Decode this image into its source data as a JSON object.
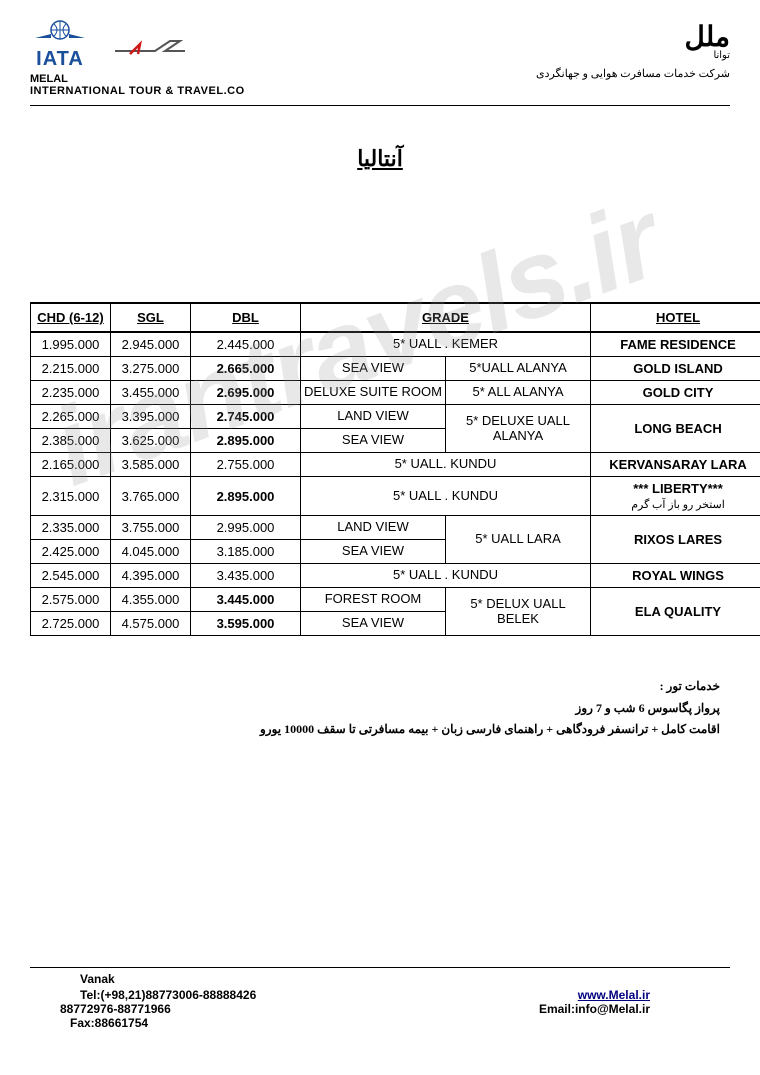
{
  "header": {
    "iata": "IATA",
    "melal": "MELAL",
    "company_en": "INTERNATIONAL TOUR & TRAVEL.CO",
    "brand_fa": "ملل",
    "brand_sub": "توانا",
    "company_fa": "شرکت خدمات مسافرت هوایی و جهانگردی"
  },
  "title": "آنتالیا",
  "watermark": "irantravels.ir",
  "table": {
    "headers": {
      "chd": "CHD (6-12)",
      "sgl": "SGL",
      "dbl": "DBL",
      "grade": "GRADE",
      "hotel": "HOTEL"
    },
    "rows": [
      {
        "chd": "1.995.000",
        "sgl": "2.945.000",
        "dbl": "2.445.000",
        "dbl_bold": false,
        "grade": "5* UALL . KEMER",
        "hotel": "FAME RESIDENCE",
        "hotel_large": false
      },
      {
        "chd": "2.215.000",
        "sgl": "3.275.000",
        "dbl": "2.665.000",
        "dbl_bold": true,
        "grade_sub1": "SEA VIEW",
        "grade_sub2": "5*UALL ALANYA",
        "hotel": "GOLD ISLAND",
        "hotel_large": true
      },
      {
        "chd": "2.235.000",
        "sgl": "3.455.000",
        "dbl": "2.695.000",
        "dbl_bold": true,
        "grade_sub1": "DELUXE SUITE ROOM",
        "grade_sub2": "5* ALL ALANYA",
        "hotel": "GOLD CITY",
        "hotel_large": true
      },
      {
        "chd": "2.265.000",
        "sgl": "3.395.000",
        "dbl": "2.745.000",
        "dbl_bold": true,
        "grade_sub1": "LAND VIEW",
        "grade_sub2": "5* DELUXE UALL ALANYA",
        "hotel": "LONG BEACH",
        "hotel_large": true,
        "rowspan_hotel": 2,
        "rowspan_sub2": 2
      },
      {
        "chd": "2.385.000",
        "sgl": "3.625.000",
        "dbl": "2.895.000",
        "dbl_bold": true,
        "grade_sub1": "SEA VIEW"
      },
      {
        "chd": "2.165.000",
        "sgl": "3.585.000",
        "dbl": "2.755.000",
        "dbl_bold": false,
        "grade": "5* UALL. KUNDU",
        "hotel": "KERVANSARAY LARA",
        "hotel_large": false
      },
      {
        "chd": "2.315.000",
        "sgl": "3.765.000",
        "dbl": "2.895.000",
        "dbl_bold": true,
        "grade": "5* UALL . KUNDU",
        "hotel": "*** LIBERTY***",
        "hotel_sub": "استخر رو باز آب گرم",
        "hotel_large": false
      },
      {
        "chd": "2.335.000",
        "sgl": "3.755.000",
        "dbl": "2.995.000",
        "dbl_bold": false,
        "grade_sub1": "LAND VIEW",
        "grade_sub2": "5* UALL LARA",
        "hotel": "RIXOS LARES",
        "hotel_large": false,
        "rowspan_hotel": 2,
        "rowspan_sub2": 2
      },
      {
        "chd": "2.425.000",
        "sgl": "4.045.000",
        "dbl": "3.185.000",
        "dbl_bold": false,
        "grade_sub1": "SEA VIEW"
      },
      {
        "chd": "2.545.000",
        "sgl": "4.395.000",
        "dbl": "3.435.000",
        "dbl_bold": false,
        "grade": "5* UALL . KUNDU",
        "hotel": "ROYAL WINGS",
        "hotel_large": false
      },
      {
        "chd": "2.575.000",
        "sgl": "4.355.000",
        "dbl": "3.445.000",
        "dbl_bold": true,
        "grade_sub1": "FOREST ROOM",
        "grade_sub2": "5* DELUX UALL BELEK",
        "hotel": "ELA QUALITY",
        "hotel_large": true,
        "rowspan_hotel": 2,
        "rowspan_sub2": 2
      },
      {
        "chd": "2.725.000",
        "sgl": "4.575.000",
        "dbl": "3.595.000",
        "dbl_bold": true,
        "grade_sub1": "SEA VIEW",
        "last": true
      }
    ]
  },
  "notes": {
    "l1": "خدمات تور :",
    "l2": "پرواز پگاسوس 6 شب و 7 روز",
    "l3": "اقامت کامل + ترانسفر فرودگاهی + راهنمای فارسی زبان + بیمه مسافرتی تا سقف 10000 یورو"
  },
  "footer": {
    "addr": "Vanak",
    "tel_label": "Tel:(+98,21)88773006-88888426",
    "tel2": "88772976-88771966",
    "fax": "Fax:88661754",
    "url": "www.Melal.ir",
    "email": "Email:info@Melal.ir"
  }
}
